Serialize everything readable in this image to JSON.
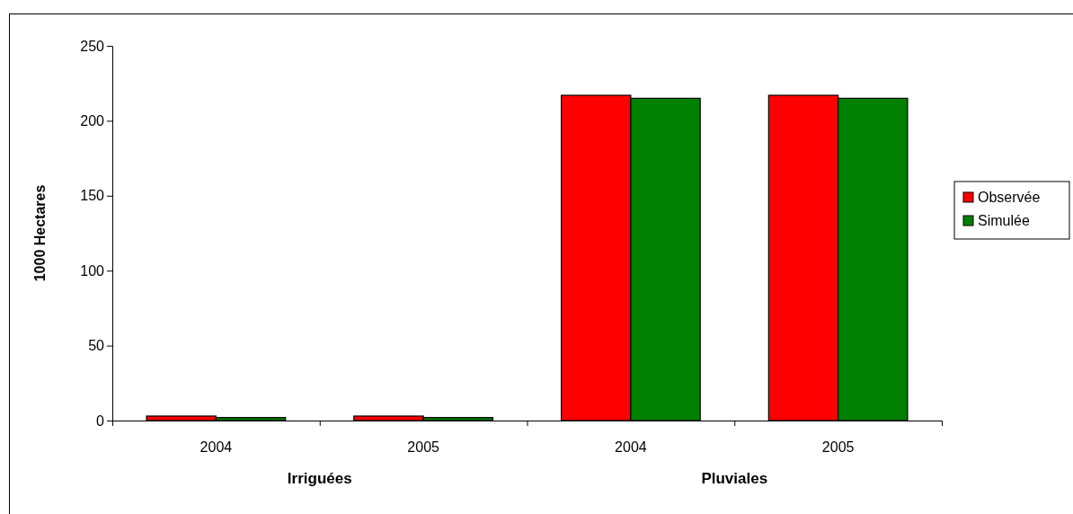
{
  "chart_data": {
    "type": "bar",
    "ylabel": "1000 Hectares",
    "categories": [
      "2004",
      "2005",
      "2004",
      "2005"
    ],
    "series": [
      {
        "name": "Observée",
        "color": "#ff0000",
        "values": [
          3,
          3,
          217,
          217
        ]
      },
      {
        "name": "Simulée",
        "color": "#008000",
        "values": [
          2,
          2,
          215,
          215
        ]
      }
    ],
    "ylim": [
      0,
      250
    ],
    "yticks": [
      0,
      50,
      100,
      150,
      200,
      250
    ],
    "grid": false,
    "legend": "right",
    "annotations": [
      "Irriguées",
      "Pluviales"
    ]
  }
}
